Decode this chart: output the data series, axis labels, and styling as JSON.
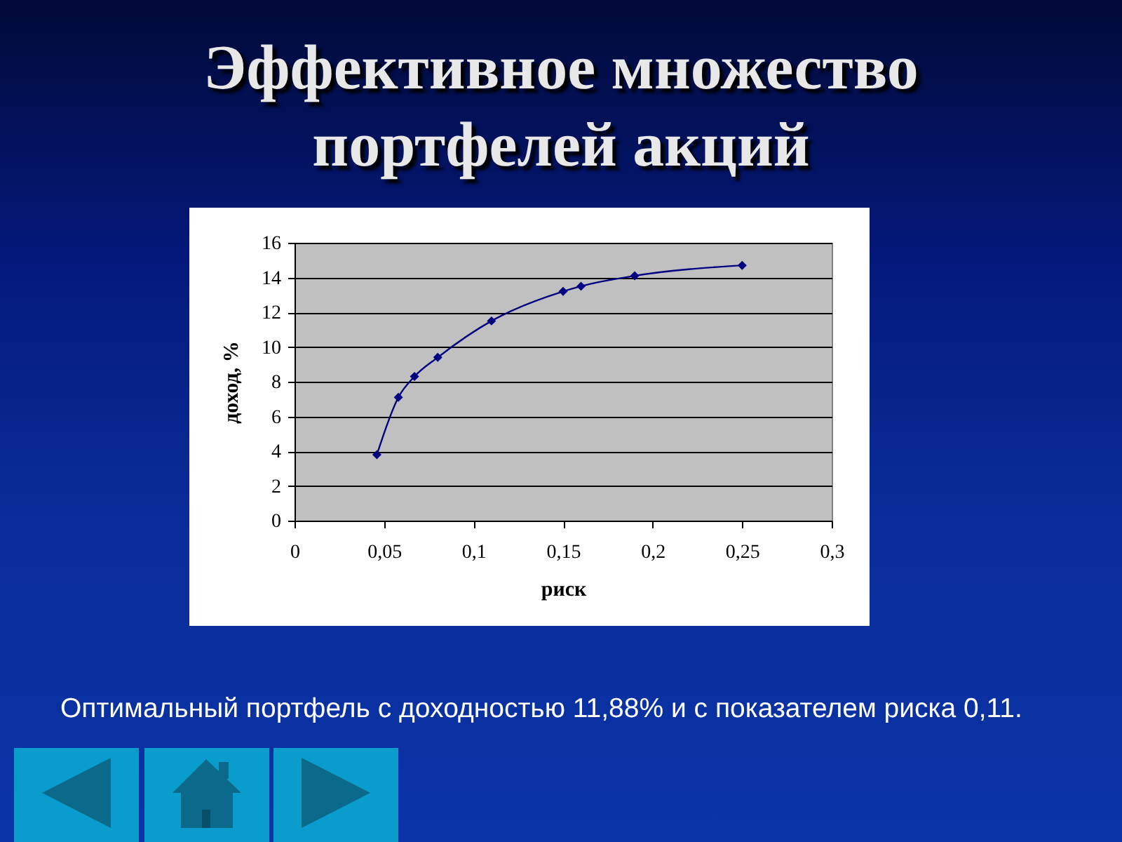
{
  "chart_data": {
    "type": "line",
    "title": "Эффективное множество портфелей акций",
    "xlabel": "риск",
    "ylabel": "доход, %",
    "annotations": [
      "Оптимальный портфель с доходностью 11,88% и с показателем риска 0,11."
    ],
    "x": [
      0.046,
      0.058,
      0.067,
      0.08,
      0.11,
      0.15,
      0.16,
      0.19,
      0.25
    ],
    "series": [
      {
        "color": "#000080",
        "values": [
          3.8,
          7.1,
          8.3,
          9.4,
          11.5,
          13.2,
          13.5,
          14.1,
          14.7
        ]
      }
    ],
    "xlim": [
      0,
      0.3
    ],
    "xticks": [
      0,
      {
        "value": 0.05,
        "label": "0,05"
      },
      {
        "value": 0.1,
        "label": "0,1"
      },
      {
        "value": 0.15,
        "label": "0,15"
      },
      {
        "value": 0.2,
        "label": "0,2"
      },
      {
        "value": 0.25,
        "label": "0,25"
      },
      {
        "value": 0.3,
        "label": "0,3"
      }
    ],
    "ylim": [
      0,
      16
    ],
    "yticks": [
      0,
      2,
      4,
      6,
      8,
      10,
      12,
      14,
      16
    ],
    "grid": "y",
    "marker": "diamond",
    "line_style": "solid"
  }
}
